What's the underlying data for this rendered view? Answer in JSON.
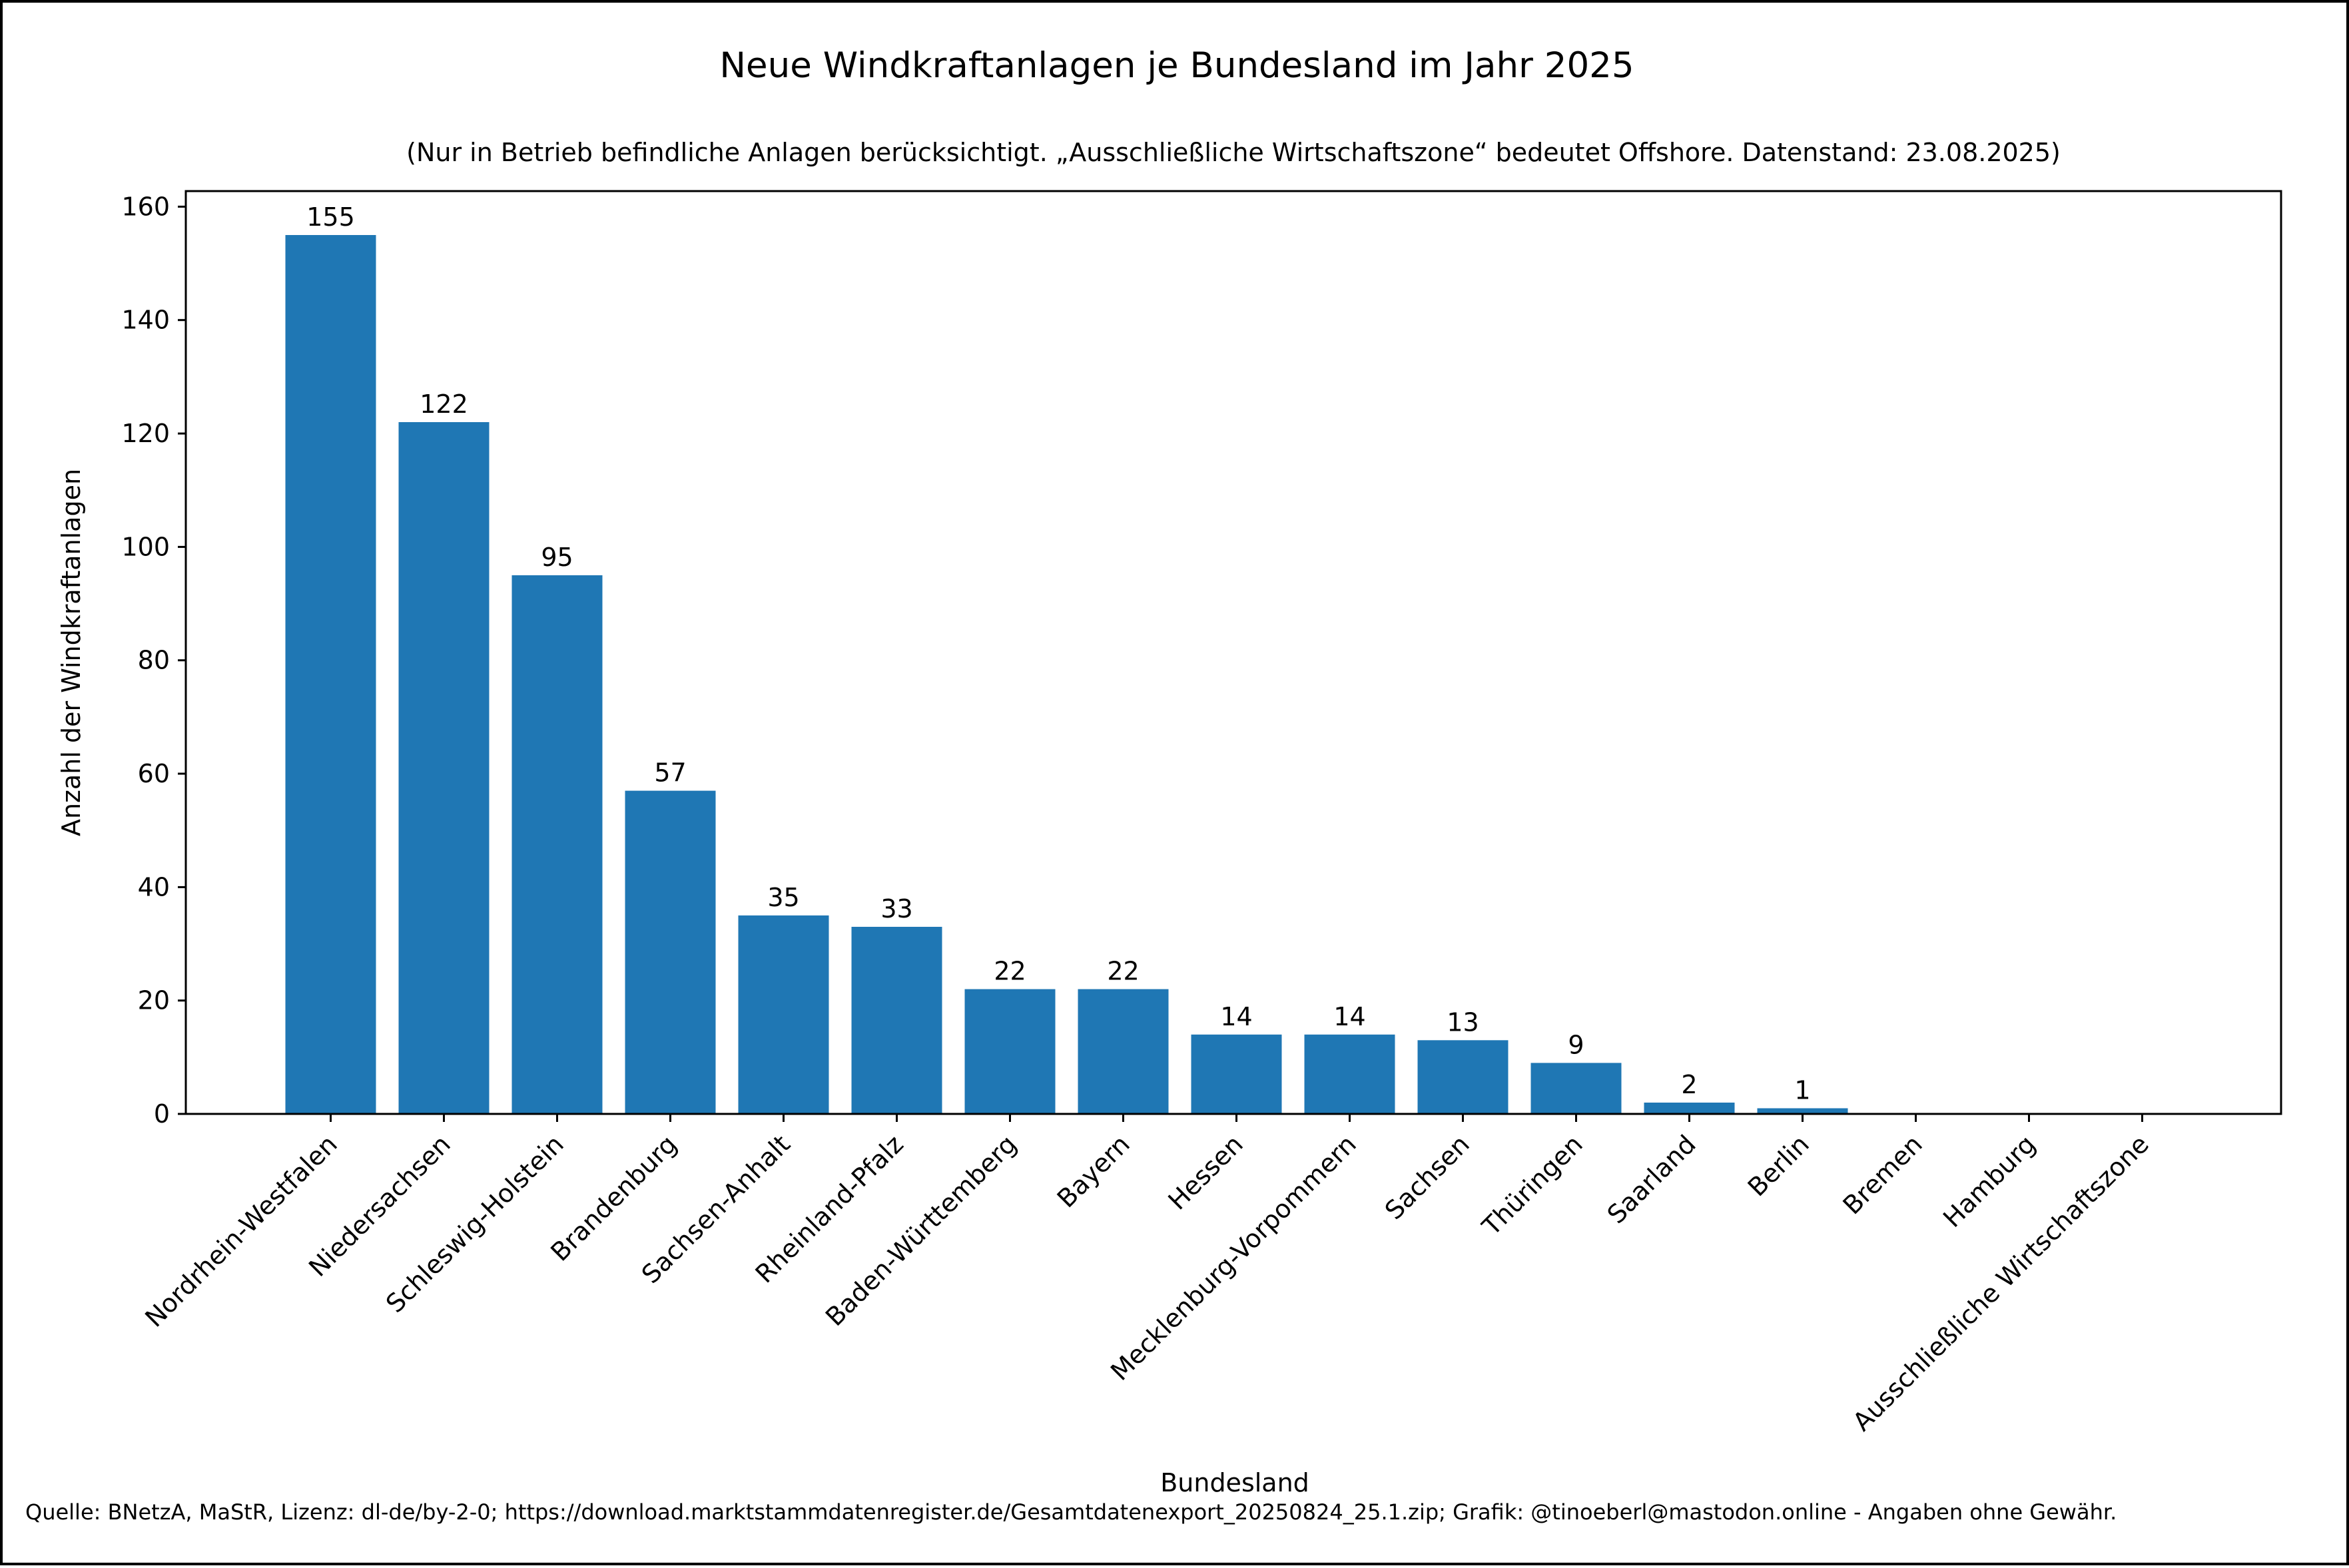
{
  "chart_data": {
    "type": "bar",
    "title": "Neue Windkraftanlagen je Bundesland im Jahr 2025",
    "subtitle": "(Nur in Betrieb befindliche Anlagen berücksichtigt. „Ausschließliche Wirtschaftszone“ bedeutet Offshore. Datenstand: 23.08.2025)",
    "xlabel": "Bundesland",
    "ylabel": "Anzahl der Windkraftanlagen",
    "categories": [
      "Nordrhein-Westfalen",
      "Niedersachsen",
      "Schleswig-Holstein",
      "Brandenburg",
      "Sachsen-Anhalt",
      "Rheinland-Pfalz",
      "Baden-Württemberg",
      "Bayern",
      "Hessen",
      "Mecklenburg-Vorpommern",
      "Sachsen",
      "Thüringen",
      "Saarland",
      "Berlin",
      "Bremen",
      "Hamburg",
      "Ausschließliche Wirtschaftszone"
    ],
    "values": [
      155,
      122,
      95,
      57,
      35,
      33,
      22,
      22,
      14,
      14,
      13,
      9,
      2,
      1,
      0,
      0,
      0
    ],
    "data_labels": [
      "155",
      "122",
      "95",
      "57",
      "35",
      "33",
      "22",
      "22",
      "14",
      "14",
      "13",
      "9",
      "2",
      "1",
      "",
      "",
      ""
    ],
    "ylim": [
      0,
      162.75
    ],
    "yticks": [
      0,
      20,
      40,
      60,
      80,
      100,
      120,
      140,
      160
    ],
    "grid": false,
    "legend": "none",
    "bar_color": "#1f77b4"
  },
  "footer": {
    "source": "Quelle: BNetzA, MaStR, Lizenz: dl-de/by-2-0; https://download.marktstammdatenregister.de/Gesamtdatenexport_20250824_25.1.zip; Grafik: @tinoeberl@mastodon.online - Angaben ohne Gewähr."
  }
}
